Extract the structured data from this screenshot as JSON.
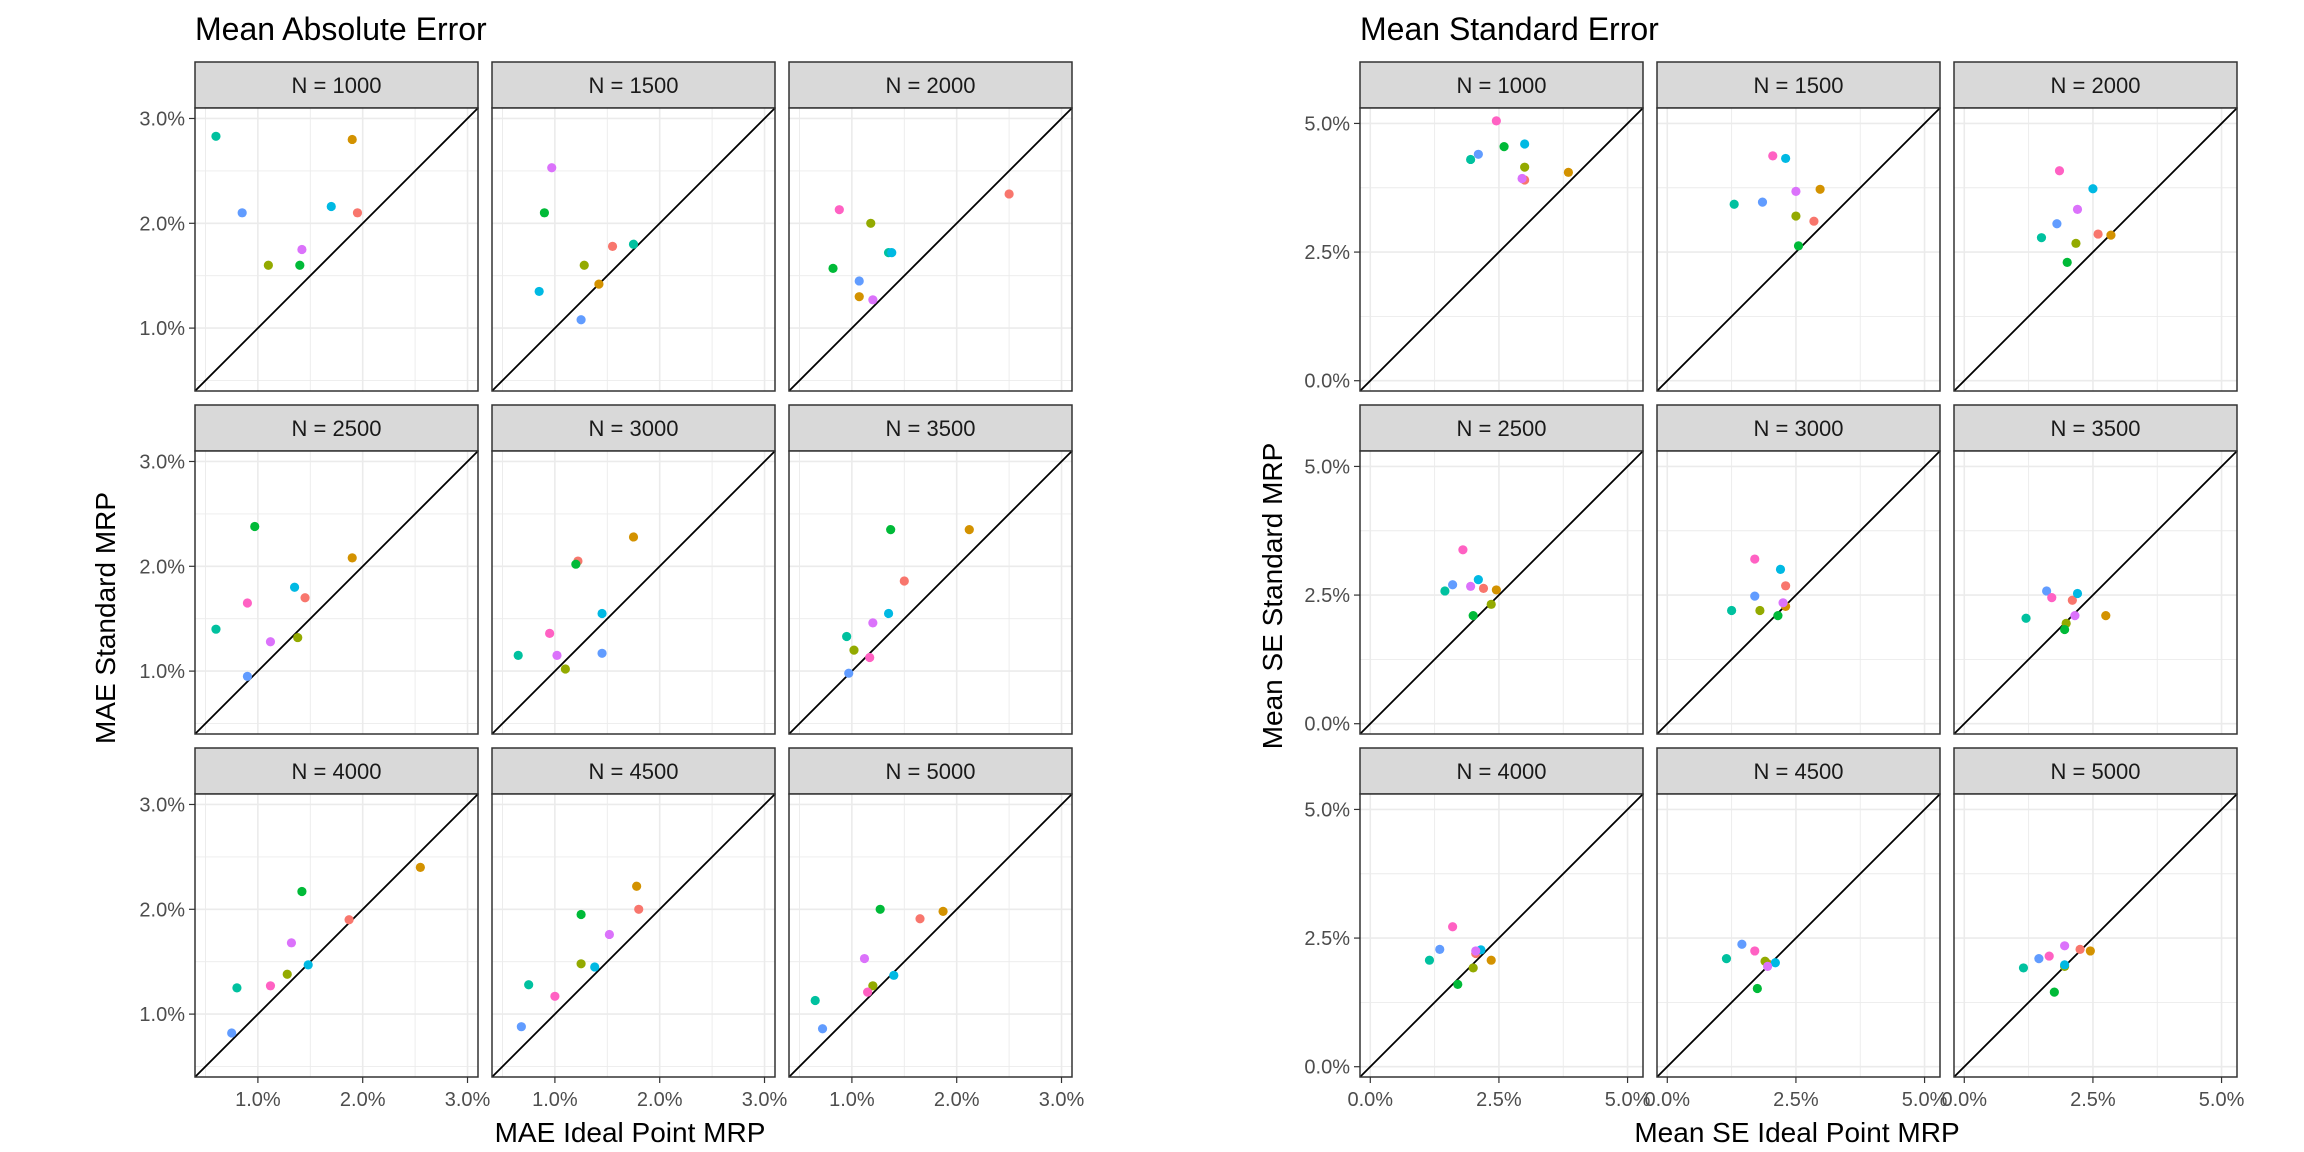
{
  "colors": [
    "#F8766D",
    "#D39200",
    "#93AA00",
    "#00BA38",
    "#00C19F",
    "#00B9E3",
    "#619CFF",
    "#DB72FB",
    "#FF61C3"
  ],
  "chart_data": [
    {
      "type": "scatter",
      "title": "Mean Absolute Error",
      "xlabel": "MAE Ideal Point MRP",
      "ylabel": "MAE Standard MRP",
      "xlim": [
        0.4,
        3.1
      ],
      "ylim": [
        0.4,
        3.1
      ],
      "xticks": [
        1,
        2,
        3
      ],
      "yticks": [
        1,
        2,
        3
      ],
      "tick_labels": [
        "1.0%",
        "2.0%",
        "3.0%"
      ],
      "reference_line": "y = x",
      "grid": true,
      "panels": [
        {
          "label": "N = 1000",
          "points": [
            [
              1.95,
              2.1
            ],
            [
              1.9,
              2.8
            ],
            [
              1.1,
              1.6
            ],
            [
              1.4,
              1.6
            ],
            [
              0.6,
              2.83
            ],
            [
              1.7,
              2.16
            ],
            [
              0.85,
              2.1
            ],
            [
              1.42,
              1.75
            ]
          ]
        },
        {
          "label": "N = 1500",
          "points": [
            [
              1.55,
              1.78
            ],
            [
              1.42,
              1.42
            ],
            [
              1.28,
              1.6
            ],
            [
              0.9,
              2.1
            ],
            [
              1.75,
              1.8
            ],
            [
              0.85,
              1.35
            ],
            [
              1.25,
              1.08
            ],
            [
              0.97,
              2.53
            ]
          ]
        },
        {
          "label": "N = 2000",
          "points": [
            [
              2.5,
              2.28
            ],
            [
              1.07,
              1.3
            ],
            [
              1.18,
              2.0
            ],
            [
              0.82,
              1.57
            ],
            [
              1.35,
              1.72
            ],
            [
              1.38,
              1.72
            ],
            [
              1.07,
              1.45
            ],
            [
              1.2,
              1.27
            ],
            [
              0.88,
              2.13
            ]
          ]
        },
        {
          "label": "N = 2500",
          "points": [
            [
              1.45,
              1.7
            ],
            [
              1.9,
              2.08
            ],
            [
              1.38,
              1.32
            ],
            [
              0.97,
              2.38
            ],
            [
              0.6,
              1.4
            ],
            [
              1.35,
              1.8
            ],
            [
              0.9,
              0.95
            ],
            [
              1.12,
              1.28
            ],
            [
              0.9,
              1.65
            ]
          ]
        },
        {
          "label": "N = 3000",
          "points": [
            [
              1.22,
              2.05
            ],
            [
              1.75,
              2.28
            ],
            [
              1.1,
              1.02
            ],
            [
              1.2,
              2.02
            ],
            [
              0.65,
              1.15
            ],
            [
              1.45,
              1.55
            ],
            [
              1.45,
              1.17
            ],
            [
              1.02,
              1.15
            ],
            [
              0.95,
              1.36
            ]
          ]
        },
        {
          "label": "N = 3500",
          "points": [
            [
              1.5,
              1.86
            ],
            [
              2.12,
              2.35
            ],
            [
              1.02,
              1.2
            ],
            [
              1.37,
              2.35
            ],
            [
              0.95,
              1.33
            ],
            [
              1.35,
              1.55
            ],
            [
              0.97,
              0.98
            ],
            [
              1.2,
              1.46
            ],
            [
              1.17,
              1.13
            ]
          ]
        },
        {
          "label": "N = 4000",
          "points": [
            [
              1.87,
              1.9
            ],
            [
              2.55,
              2.4
            ],
            [
              1.28,
              1.38
            ],
            [
              1.42,
              2.17
            ],
            [
              0.8,
              1.25
            ],
            [
              1.48,
              1.47
            ],
            [
              0.75,
              0.82
            ],
            [
              1.32,
              1.68
            ],
            [
              1.12,
              1.27
            ]
          ]
        },
        {
          "label": "N = 4500",
          "points": [
            [
              1.8,
              2.0
            ],
            [
              1.78,
              2.22
            ],
            [
              1.25,
              1.48
            ],
            [
              1.25,
              1.95
            ],
            [
              0.75,
              1.28
            ],
            [
              1.38,
              1.45
            ],
            [
              0.68,
              0.88
            ],
            [
              1.52,
              1.76
            ],
            [
              1.0,
              1.17
            ]
          ]
        },
        {
          "label": "N = 5000",
          "points": [
            [
              1.65,
              1.91
            ],
            [
              1.87,
              1.98
            ],
            [
              1.2,
              1.27
            ],
            [
              1.27,
              2.0
            ],
            [
              0.65,
              1.13
            ],
            [
              1.4,
              1.37
            ],
            [
              0.72,
              0.86
            ],
            [
              1.12,
              1.53
            ],
            [
              1.15,
              1.21
            ]
          ]
        }
      ]
    },
    {
      "type": "scatter",
      "title": "Mean Standard Error",
      "xlabel": "Mean SE Ideal Point MRP",
      "ylabel": "Mean SE Standard MRP",
      "xlim": [
        -0.2,
        5.3
      ],
      "ylim": [
        -0.2,
        5.3
      ],
      "xticks": [
        0,
        2.5,
        5
      ],
      "yticks": [
        0,
        2.5,
        5
      ],
      "tick_labels": [
        "0.0%",
        "2.5%",
        "5.0%"
      ],
      "reference_line": "y = x",
      "grid": true,
      "panels": [
        {
          "label": "N = 1000",
          "points": [
            [
              3.0,
              3.9
            ],
            [
              3.85,
              4.05
            ],
            [
              3.0,
              4.15
            ],
            [
              2.6,
              4.55
            ],
            [
              1.95,
              4.3
            ],
            [
              3.0,
              4.6
            ],
            [
              2.1,
              4.4
            ],
            [
              2.95,
              3.93
            ],
            [
              2.45,
              5.05
            ]
          ]
        },
        {
          "label": "N = 1500",
          "points": [
            [
              2.85,
              3.1
            ],
            [
              2.97,
              3.72
            ],
            [
              2.5,
              3.2
            ],
            [
              2.55,
              2.62
            ],
            [
              1.3,
              3.43
            ],
            [
              2.3,
              4.32
            ],
            [
              1.85,
              3.47
            ],
            [
              2.5,
              3.68
            ],
            [
              2.05,
              4.37
            ]
          ]
        },
        {
          "label": "N = 2000",
          "points": [
            [
              2.6,
              2.85
            ],
            [
              2.85,
              2.83
            ],
            [
              2.17,
              2.67
            ],
            [
              2.0,
              2.3
            ],
            [
              1.5,
              2.78
            ],
            [
              2.5,
              3.73
            ],
            [
              1.8,
              3.05
            ],
            [
              2.2,
              3.33
            ],
            [
              1.85,
              4.08
            ]
          ]
        },
        {
          "label": "N = 2500",
          "points": [
            [
              2.2,
              2.63
            ],
            [
              2.45,
              2.6
            ],
            [
              2.35,
              2.32
            ],
            [
              2.0,
              2.1
            ],
            [
              1.45,
              2.58
            ],
            [
              2.1,
              2.8
            ],
            [
              1.6,
              2.7
            ],
            [
              1.95,
              2.67
            ],
            [
              1.8,
              3.38
            ]
          ]
        },
        {
          "label": "N = 3000",
          "points": [
            [
              2.3,
              2.68
            ],
            [
              2.3,
              2.28
            ],
            [
              1.8,
              2.2
            ],
            [
              2.15,
              2.1
            ],
            [
              1.25,
              2.2
            ],
            [
              2.2,
              3.0
            ],
            [
              1.7,
              2.48
            ],
            [
              2.25,
              2.35
            ],
            [
              1.7,
              3.2
            ]
          ]
        },
        {
          "label": "N = 3500",
          "points": [
            [
              2.1,
              2.4
            ],
            [
              2.75,
              2.1
            ],
            [
              1.98,
              1.95
            ],
            [
              1.95,
              1.83
            ],
            [
              1.2,
              2.05
            ],
            [
              2.2,
              2.53
            ],
            [
              1.6,
              2.58
            ],
            [
              2.15,
              2.1
            ],
            [
              1.7,
              2.45
            ]
          ]
        },
        {
          "label": "N = 4000",
          "points": [
            [
              2.05,
              2.2
            ],
            [
              2.35,
              2.07
            ],
            [
              2.0,
              1.92
            ],
            [
              1.7,
              1.6
            ],
            [
              1.15,
              2.07
            ],
            [
              2.15,
              2.27
            ],
            [
              1.35,
              2.28
            ],
            [
              2.05,
              2.25
            ],
            [
              1.6,
              2.72
            ]
          ]
        },
        {
          "label": "N = 4500",
          "points": [
            [
              1.95,
              2.0
            ],
            [
              1.95,
              2.0
            ],
            [
              1.9,
              2.05
            ],
            [
              1.75,
              1.52
            ],
            [
              1.15,
              2.1
            ],
            [
              2.1,
              2.02
            ],
            [
              1.45,
              2.38
            ],
            [
              1.95,
              1.95
            ],
            [
              1.7,
              2.25
            ]
          ]
        },
        {
          "label": "N = 5000",
          "points": [
            [
              2.25,
              2.28
            ],
            [
              2.45,
              2.25
            ],
            [
              1.95,
              1.95
            ],
            [
              1.75,
              1.45
            ],
            [
              1.15,
              1.92
            ],
            [
              1.95,
              1.98
            ],
            [
              1.45,
              2.1
            ],
            [
              1.95,
              2.35
            ],
            [
              1.65,
              2.15
            ]
          ]
        }
      ]
    }
  ]
}
